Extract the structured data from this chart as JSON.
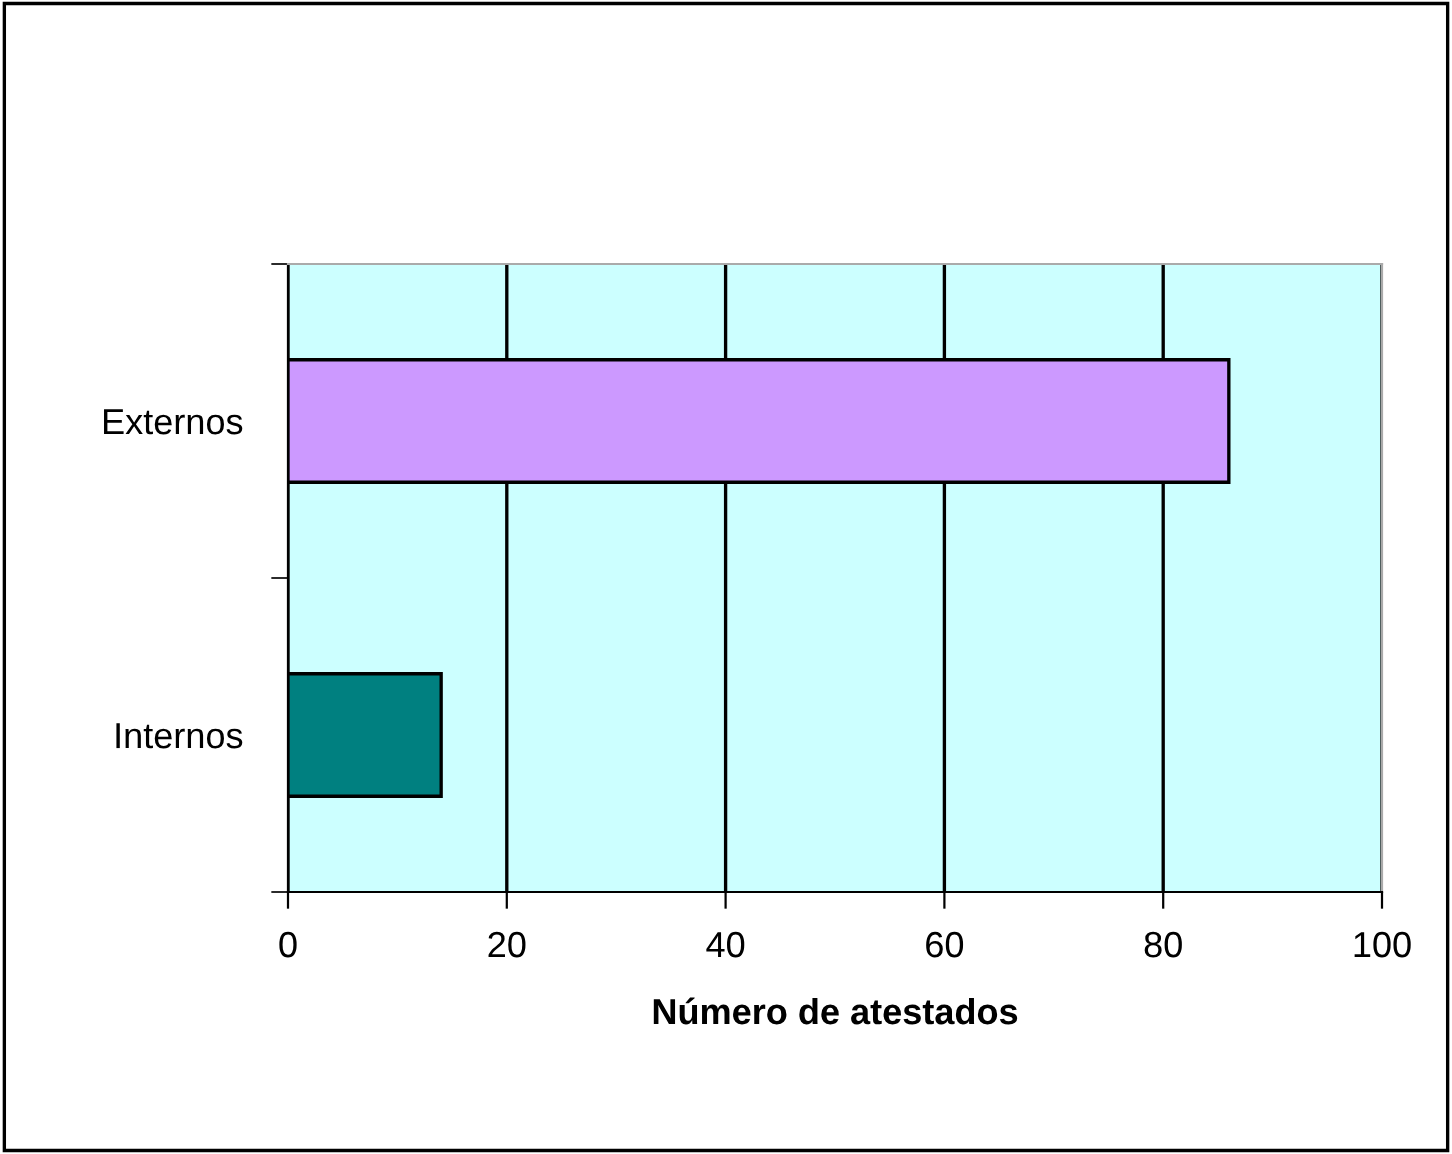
{
  "chart_data": {
    "type": "bar",
    "orientation": "horizontal",
    "xlabel": "Número de atestados",
    "categories": [
      "Externos",
      "Internos"
    ],
    "values": [
      86,
      14
    ],
    "colors": [
      "#cc99ff",
      "#008080"
    ],
    "xlim": [
      0,
      100
    ],
    "xticks": [
      0,
      20,
      40,
      60,
      80,
      100
    ],
    "grid": "x",
    "legend": false
  }
}
